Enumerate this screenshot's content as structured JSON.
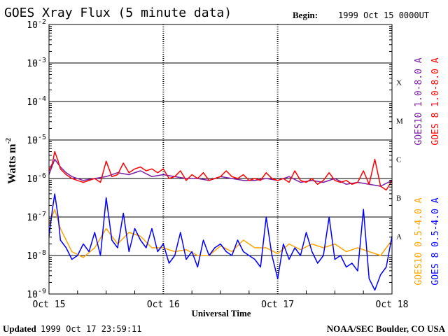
{
  "header": {
    "title": "GOES Xray Flux (5 minute data)",
    "begin_label": "Begin:",
    "begin_value": "1999 Oct 15 0000UT"
  },
  "footer": {
    "updated_label": "Updated",
    "updated_value": "1999 Oct 17 23:59:11",
    "credit": "NOAA/SEC Boulder, CO USA"
  },
  "chart_data": {
    "type": "line",
    "title": "GOES Xray Flux (5 minute data)",
    "xlabel": "Universal Time",
    "ylabel": "Watts m",
    "ylabel_exponent": "-2",
    "y_scale": "log",
    "ylim_exponent": [
      -9,
      -2
    ],
    "y_ticks": [
      {
        "base": "10",
        "exp": "-2"
      },
      {
        "base": "10",
        "exp": "-3"
      },
      {
        "base": "10",
        "exp": "-4"
      },
      {
        "base": "10",
        "exp": "-5"
      },
      {
        "base": "10",
        "exp": "-6"
      },
      {
        "base": "10",
        "exp": "-7"
      },
      {
        "base": "10",
        "exp": "-8"
      },
      {
        "base": "10",
        "exp": "-9"
      }
    ],
    "x_ticks": [
      "Oct 15",
      "Oct 16",
      "Oct 17",
      "Oct 18"
    ],
    "x_days": [
      0,
      1,
      2,
      3
    ],
    "flare_classes": [
      {
        "label": "X",
        "exp": -3.5
      },
      {
        "label": "M",
        "exp": -4.5
      },
      {
        "label": "C",
        "exp": -5.5
      },
      {
        "label": "B",
        "exp": -6.5
      },
      {
        "label": "A",
        "exp": -7.5
      }
    ],
    "grid": true,
    "series": [
      {
        "name": "GOES10 1.0-8.0 A",
        "color": "#7a1fa2",
        "x_days": [
          0,
          0.05,
          0.1,
          0.15,
          0.2,
          0.3,
          0.4,
          0.5,
          0.6,
          0.7,
          0.8,
          0.9,
          1.0,
          1.1,
          1.2,
          1.3,
          1.4,
          1.5,
          1.6,
          1.7,
          1.8,
          1.9,
          2.0,
          2.1,
          2.2,
          2.3,
          2.4,
          2.5,
          2.6,
          2.7,
          2.8,
          2.9,
          3.0
        ],
        "log_flux": [
          -5.9,
          -5.5,
          -5.7,
          -5.85,
          -5.95,
          -6.05,
          -6.0,
          -5.95,
          -5.85,
          -5.9,
          -5.8,
          -5.95,
          -5.9,
          -5.95,
          -6.0,
          -6.0,
          -6.05,
          -5.95,
          -6.0,
          -6.05,
          -6.05,
          -6.0,
          -6.05,
          -5.95,
          -6.1,
          -6.05,
          -6.1,
          -6.0,
          -6.15,
          -6.1,
          -6.15,
          -6.2,
          -6.05
        ]
      },
      {
        "name": "GOES 8 1.0-8.0 A",
        "color": "#ff0000",
        "x_days": [
          0,
          0.03,
          0.05,
          0.08,
          0.1,
          0.15,
          0.2,
          0.25,
          0.3,
          0.35,
          0.4,
          0.45,
          0.5,
          0.55,
          0.6,
          0.65,
          0.7,
          0.75,
          0.8,
          0.85,
          0.9,
          0.95,
          1.0,
          1.05,
          1.1,
          1.15,
          1.2,
          1.25,
          1.3,
          1.35,
          1.4,
          1.45,
          1.5,
          1.55,
          1.6,
          1.65,
          1.7,
          1.75,
          1.8,
          1.85,
          1.9,
          1.95,
          2.0,
          2.05,
          2.1,
          2.15,
          2.2,
          2.25,
          2.3,
          2.35,
          2.4,
          2.45,
          2.5,
          2.55,
          2.6,
          2.65,
          2.7,
          2.75,
          2.8,
          2.85,
          2.9,
          2.95,
          3.0
        ],
        "log_flux": [
          -5.8,
          -5.6,
          -5.3,
          -5.55,
          -5.75,
          -5.9,
          -6.0,
          -6.05,
          -6.1,
          -6.05,
          -6.0,
          -6.1,
          -5.55,
          -5.95,
          -5.9,
          -5.6,
          -5.85,
          -5.75,
          -5.7,
          -5.8,
          -5.75,
          -5.85,
          -5.75,
          -6.0,
          -5.95,
          -5.8,
          -6.05,
          -5.9,
          -6.0,
          -5.85,
          -6.05,
          -6.0,
          -5.95,
          -5.8,
          -5.95,
          -6.0,
          -5.9,
          -6.05,
          -6.0,
          -6.05,
          -5.85,
          -6.0,
          -6.05,
          -6.0,
          -6.1,
          -5.8,
          -6.05,
          -6.1,
          -6.0,
          -6.15,
          -6.05,
          -5.85,
          -6.05,
          -6.1,
          -6.05,
          -6.15,
          -6.1,
          -5.8,
          -6.15,
          -5.5,
          -6.2,
          -6.3,
          -6.05
        ]
      },
      {
        "name": "GOES10 0.5-4.0 A",
        "color": "#ffa500",
        "x_days": [
          0,
          0.05,
          0.1,
          0.15,
          0.2,
          0.3,
          0.4,
          0.5,
          0.6,
          0.7,
          0.8,
          0.9,
          1.0,
          1.1,
          1.2,
          1.3,
          1.4,
          1.5,
          1.6,
          1.7,
          1.8,
          1.9,
          2.0,
          2.1,
          2.2,
          2.3,
          2.4,
          2.5,
          2.6,
          2.7,
          2.8,
          2.9,
          3.0
        ],
        "log_flux": [
          -7.2,
          -6.8,
          -7.3,
          -7.6,
          -7.9,
          -8.05,
          -7.8,
          -7.3,
          -7.7,
          -7.4,
          -7.5,
          -7.8,
          -7.8,
          -7.9,
          -7.85,
          -8.0,
          -8.0,
          -7.75,
          -7.9,
          -7.6,
          -7.8,
          -7.8,
          -7.95,
          -7.7,
          -7.85,
          -7.7,
          -7.8,
          -7.7,
          -7.9,
          -7.8,
          -7.9,
          -8.0,
          -7.6
        ]
      },
      {
        "name": "GOES 8 0.5-4.0 A",
        "color": "#0000ff",
        "x_days": [
          0,
          0.03,
          0.05,
          0.08,
          0.1,
          0.15,
          0.2,
          0.25,
          0.3,
          0.35,
          0.4,
          0.45,
          0.5,
          0.55,
          0.6,
          0.65,
          0.7,
          0.75,
          0.8,
          0.85,
          0.9,
          0.95,
          1.0,
          1.05,
          1.1,
          1.15,
          1.2,
          1.25,
          1.3,
          1.35,
          1.4,
          1.45,
          1.5,
          1.55,
          1.6,
          1.65,
          1.7,
          1.75,
          1.8,
          1.85,
          1.9,
          1.95,
          2.0,
          2.05,
          2.1,
          2.15,
          2.2,
          2.25,
          2.3,
          2.35,
          2.4,
          2.45,
          2.5,
          2.55,
          2.6,
          2.65,
          2.7,
          2.75,
          2.8,
          2.85,
          2.9,
          2.95,
          3.0
        ],
        "log_flux": [
          -7.5,
          -6.8,
          -6.4,
          -7.0,
          -7.6,
          -7.8,
          -8.1,
          -8.0,
          -7.7,
          -7.9,
          -7.4,
          -8.0,
          -6.5,
          -7.6,
          -7.8,
          -6.9,
          -7.9,
          -7.3,
          -7.6,
          -7.8,
          -7.3,
          -7.9,
          -7.7,
          -8.2,
          -8.0,
          -7.4,
          -8.1,
          -7.9,
          -8.3,
          -7.6,
          -8.0,
          -7.8,
          -7.7,
          -7.9,
          -8.0,
          -7.6,
          -7.9,
          -8.0,
          -8.1,
          -8.3,
          -7.0,
          -8.0,
          -8.6,
          -7.7,
          -8.1,
          -7.8,
          -8.0,
          -7.4,
          -7.9,
          -8.2,
          -8.0,
          -7.0,
          -8.1,
          -8.0,
          -8.3,
          -8.2,
          -8.4,
          -6.8,
          -8.6,
          -8.9,
          -8.5,
          -8.3,
          -7.5
        ]
      }
    ]
  }
}
